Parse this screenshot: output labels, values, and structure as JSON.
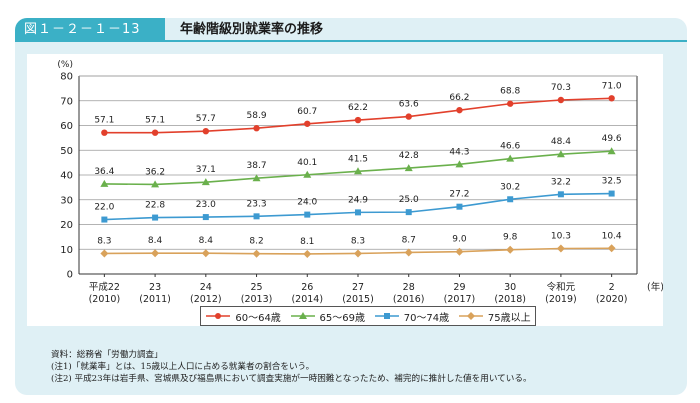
{
  "figure": {
    "number": "図１－２－１－13",
    "title": "年齢階級別就業率の推移"
  },
  "chart_data": {
    "type": "line",
    "ylabel": "(%)",
    "xlabel": "(年)",
    "ylim": [
      0,
      80
    ],
    "yticks": [
      "0",
      "10",
      "20",
      "30",
      "40",
      "50",
      "60",
      "70",
      "80"
    ],
    "grid": true,
    "legend_position": "bottom",
    "categories": [
      {
        "era": "平成22",
        "year": "(2010)"
      },
      {
        "era": "23",
        "year": "(2011)"
      },
      {
        "era": "24",
        "year": "(2012)"
      },
      {
        "era": "25",
        "year": "(2013)"
      },
      {
        "era": "26",
        "year": "(2014)"
      },
      {
        "era": "27",
        "year": "(2015)"
      },
      {
        "era": "28",
        "year": "(2016)"
      },
      {
        "era": "29",
        "year": "(2017)"
      },
      {
        "era": "30",
        "year": "(2018)"
      },
      {
        "era": "令和元",
        "year": "(2019)"
      },
      {
        "era": "2",
        "year": "(2020)"
      }
    ],
    "series": [
      {
        "name": "60～64歳",
        "color": "#e2402c",
        "marker": "circle",
        "values": [
          57.1,
          57.1,
          57.7,
          58.9,
          60.7,
          62.2,
          63.6,
          66.2,
          68.8,
          70.3,
          71.0
        ],
        "labels": [
          "57.1",
          "57.1",
          "57.7",
          "58.9",
          "60.7",
          "62.2",
          "63.6",
          "66.2",
          "68.8",
          "70.3",
          "71.0"
        ]
      },
      {
        "name": "65～69歳",
        "color": "#6ab04c",
        "marker": "triangle",
        "values": [
          36.4,
          36.2,
          37.1,
          38.7,
          40.1,
          41.5,
          42.8,
          44.3,
          46.6,
          48.4,
          49.6
        ],
        "labels": [
          "36.4",
          "36.2",
          "37.1",
          "38.7",
          "40.1",
          "41.5",
          "42.8",
          "44.3",
          "46.6",
          "48.4",
          "49.6"
        ]
      },
      {
        "name": "70～74歳",
        "color": "#3d9ad1",
        "marker": "square",
        "values": [
          22.0,
          22.8,
          23.0,
          23.3,
          24.0,
          24.9,
          25.0,
          27.2,
          30.2,
          32.2,
          32.5
        ],
        "labels": [
          "22.0",
          "22.8",
          "23.0",
          "23.3",
          "24.0",
          "24.9",
          "25.0",
          "27.2",
          "30.2",
          "32.2",
          "32.5"
        ]
      },
      {
        "name": "75歳以上",
        "color": "#d9a25b",
        "marker": "diamond",
        "values": [
          8.3,
          8.4,
          8.4,
          8.2,
          8.1,
          8.3,
          8.7,
          9.0,
          9.8,
          10.3,
          10.4
        ],
        "labels": [
          "8.3",
          "8.4",
          "8.4",
          "8.2",
          "8.1",
          "8.3",
          "8.7",
          "9.0",
          "9.8",
          "10.3",
          "10.4"
        ]
      }
    ]
  },
  "notes": [
    "資料：総務省「労働力調査」",
    "(注1)「就業率」とは、15歳以上人口に占める就業者の割合をいう。",
    "(注2) 平成23年は岩手県、宮城県及び福島県において調査実施が一時困難となったため、補完的に推計した値を用いている。"
  ]
}
